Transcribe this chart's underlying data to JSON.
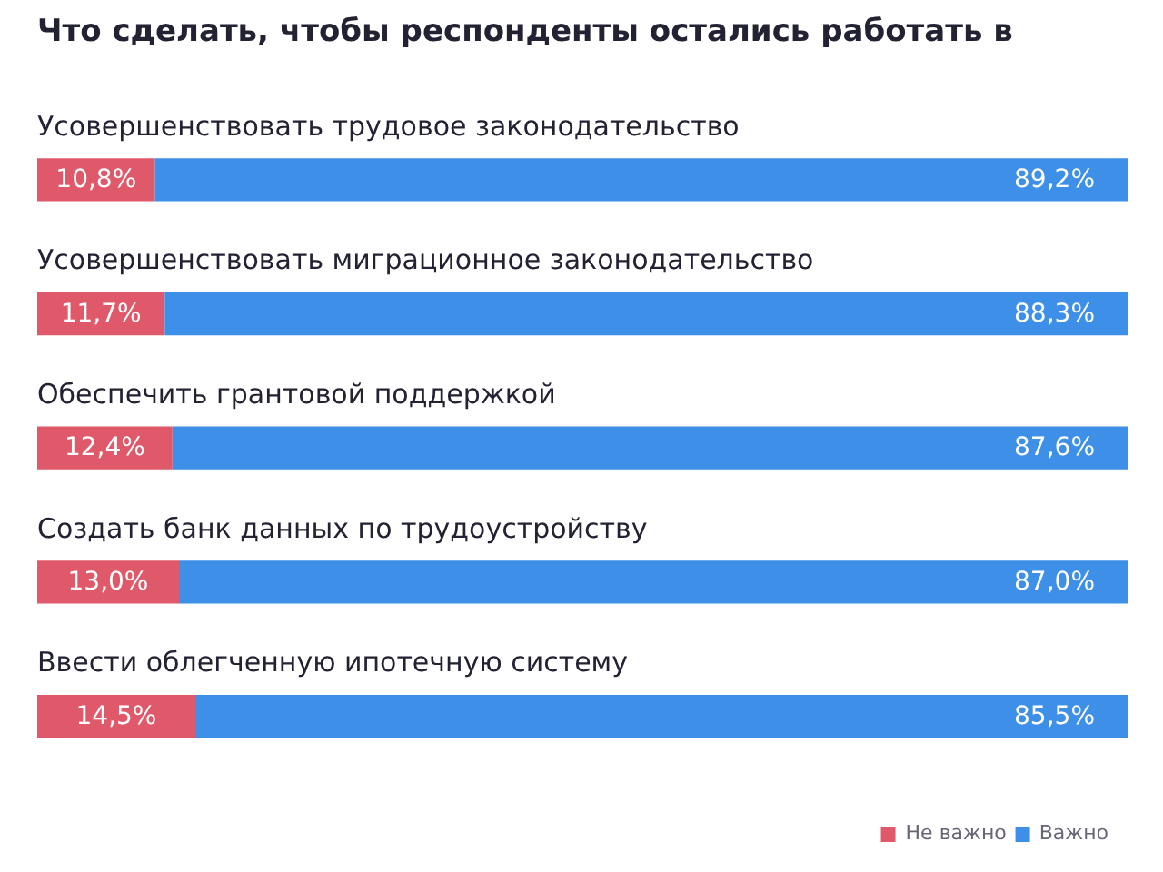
{
  "chart_data": {
    "type": "bar",
    "orientation": "horizontal",
    "stacked": true,
    "title": "Что сделать, чтобы респонденты остались работать в",
    "categories": [
      "Усовершенствовать трудовое законодательство",
      "Усовершенствовать миграционное законодательство",
      "Обеспечить грантовой поддержкой",
      "Создать банк данных по трудоустройству",
      "Ввести облегченную ипотечную систему"
    ],
    "series": [
      {
        "name": "Не важно",
        "color": "#e0596a",
        "values": [
          10.8,
          11.7,
          12.4,
          13.0,
          14.5
        ],
        "value_labels": [
          "10,8%",
          "11,7%",
          "12,4%",
          "13,0%",
          "14,5%"
        ]
      },
      {
        "name": "Важно",
        "color": "#3d8fe8",
        "values": [
          89.2,
          88.3,
          87.6,
          87.0,
          85.5
        ],
        "value_labels": [
          "89,2%",
          "88,3%",
          "87,6%",
          "87,0%",
          "85,5%"
        ]
      }
    ],
    "legend": "bottom right"
  }
}
